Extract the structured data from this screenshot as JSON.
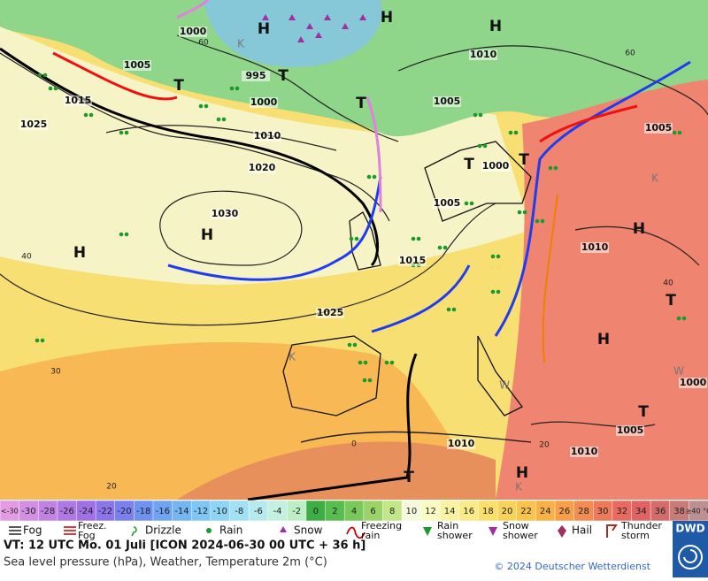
{
  "map": {
    "pressure_labels": [
      "1000",
      "1005",
      "1010",
      "995",
      "1000",
      "1015",
      "1005",
      "1025",
      "1010",
      "1020",
      "1005",
      "1000",
      "1030",
      "1005",
      "1015",
      "1010",
      "1025",
      "1000",
      "1005",
      "1010",
      "1010"
    ],
    "centers": [
      "H",
      "H",
      "H",
      "T",
      "T",
      "T",
      "T",
      "T",
      "H",
      "H",
      "H",
      "T",
      "H",
      "T",
      "H",
      "T"
    ],
    "air_masses": [
      "K",
      "K",
      "K",
      "W",
      "W",
      "K"
    ],
    "temperature_labels": [
      "60",
      "60",
      "40",
      "40",
      "30",
      "20",
      "20",
      "0"
    ]
  },
  "scale": {
    "labels": [
      "<-30",
      "-30",
      "-28",
      "-26",
      "-24",
      "-22",
      "-20",
      "-18",
      "-16",
      "-14",
      "-12",
      "-10",
      "-8",
      "-6",
      "-4",
      "-2",
      "0",
      "2",
      "4",
      "6",
      "8",
      "10",
      "12",
      "14",
      "16",
      "18",
      "20",
      "22",
      "24",
      "26",
      "28",
      "30",
      "32",
      "34",
      "36",
      "38",
      "≥40 °C"
    ],
    "colors": [
      "#e39be3",
      "#d28fe3",
      "#c183e3",
      "#b078e3",
      "#a070e6",
      "#8c74ea",
      "#7a80ee",
      "#6f92f0",
      "#6fa4f2",
      "#74b6f4",
      "#7ec6f5",
      "#8ed4f5",
      "#a2e0f3",
      "#b6eaee",
      "#c4f0e2",
      "#bdeec4",
      "#3cae44",
      "#58bc4e",
      "#78c85a",
      "#9ad468",
      "#c2e688",
      "#f6fadc",
      "#fbfbc4",
      "#faf3a4",
      "#f9eb88",
      "#f8e06a",
      "#f8d35a",
      "#f8c44c",
      "#f8b244",
      "#f79f48",
      "#f38c52",
      "#ee7a5c",
      "#e86a60",
      "#e06464",
      "#d46c6c",
      "#c87c78",
      "#bc9090"
    ]
  },
  "legend": [
    [
      "Fog"
    ],
    [
      "Freez.",
      "Fog"
    ],
    [
      "Drizzle"
    ],
    [
      "Rain"
    ],
    [
      "Snow"
    ],
    [
      "Freezing",
      "rain"
    ],
    [
      "Rain",
      "shower"
    ],
    [
      "Snow",
      "shower"
    ],
    [
      "Hail"
    ],
    [
      "Thunder",
      "storm"
    ]
  ],
  "footer": {
    "valid_time": "VT: 12 UTC Mo.  01 Juli [ICON 2024-06-30  00 UTC + 36 h]",
    "subtitle": "Sea level pressure (hPa), Weather, Temperature 2m (°C)",
    "copyright": "© 2024 Deutscher Wetterdienst",
    "logo": "DWD"
  }
}
